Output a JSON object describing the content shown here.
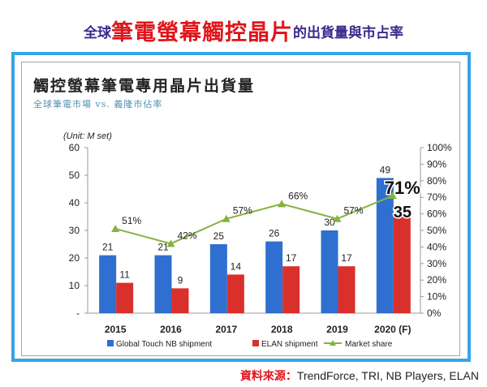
{
  "headline": {
    "prefix": "全球",
    "emphasis": "筆電螢幕觸控晶片",
    "suffix": "的出貨量與市占率"
  },
  "source": {
    "label": "資料來源：",
    "text": "TrendForce, TRI, NB Players, ELAN"
  },
  "colors": {
    "frame": "#33a6e6",
    "global_bar": "#2f6fd0",
    "elan_bar": "#d9302b",
    "share_line": "#86b23f",
    "headline_red": "#e0151b",
    "headline_purple": "#3a2a8c"
  },
  "chart_data": {
    "type": "bar",
    "title": "觸控螢幕筆電專用晶片出貨量",
    "subtitle": "全球筆電市場 vs. 義隆市佔率",
    "unit_label": "(Unit: M set)",
    "categories": [
      "2015",
      "2016",
      "2017",
      "2018",
      "2019",
      "2020 (F)"
    ],
    "y_left": {
      "ticks": [
        "60",
        "50",
        "40",
        "30",
        "20",
        "10",
        "-"
      ],
      "range": [
        0,
        60
      ]
    },
    "y_right": {
      "ticks": [
        "100%",
        "90%",
        "80%",
        "70%",
        "60%",
        "50%",
        "40%",
        "30%",
        "20%",
        "10%",
        "0%"
      ],
      "range": [
        0,
        100
      ]
    },
    "series": [
      {
        "name": "Global Touch NB shipment",
        "values": [
          21,
          21,
          25,
          26,
          30,
          49
        ],
        "labels": [
          "21",
          "21",
          "25",
          "26",
          "30",
          "49"
        ]
      },
      {
        "name": "ELAN shipment",
        "values": [
          11,
          9,
          14,
          17,
          17,
          35
        ],
        "labels": [
          "11",
          "9",
          "14",
          "17",
          "17",
          "35"
        ]
      },
      {
        "name": "Market share",
        "values": [
          51,
          42,
          57,
          66,
          57,
          71
        ],
        "labels": [
          "51%",
          "42%",
          "57%",
          "66%",
          "57%",
          "71%"
        ]
      }
    ],
    "legend_position": "bottom",
    "grid": false
  }
}
